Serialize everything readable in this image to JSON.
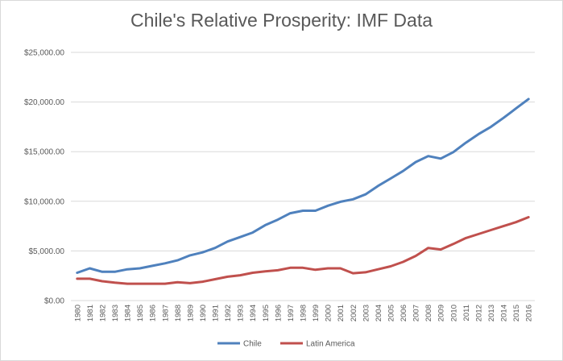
{
  "chart_data": {
    "type": "line",
    "title": "Chile's Relative Prosperity: IMF Data",
    "x": [
      "1980",
      "1981",
      "1982",
      "1983",
      "1984",
      "1985",
      "1986",
      "1987",
      "1988",
      "1989",
      "1990",
      "1991",
      "1992",
      "1993",
      "1994",
      "1995",
      "1996",
      "1997",
      "1998",
      "1999",
      "2000",
      "2001",
      "2002",
      "2003",
      "2004",
      "2005",
      "2006",
      "2007",
      "2008",
      "2009",
      "2010",
      "2011",
      "2012",
      "2013",
      "2014",
      "2015",
      "2016"
    ],
    "series": [
      {
        "name": "Chile",
        "color": "#4f81bd",
        "values": [
          2800,
          3250,
          2900,
          2900,
          3150,
          3250,
          3500,
          3750,
          4050,
          4550,
          4850,
          5300,
          5950,
          6400,
          6850,
          7600,
          8150,
          8800,
          9050,
          9050,
          9550,
          9950,
          10200,
          10700,
          11550,
          12300,
          13050,
          13950,
          14550,
          14300,
          14950,
          15900,
          16750,
          17500,
          18400,
          19350,
          20300
        ]
      },
      {
        "name": "Latin America",
        "color": "#c0504d",
        "values": [
          2200,
          2200,
          1950,
          1800,
          1700,
          1700,
          1700,
          1700,
          1850,
          1750,
          1900,
          2150,
          2400,
          2550,
          2800,
          2950,
          3050,
          3300,
          3300,
          3100,
          3250,
          3250,
          2750,
          2850,
          3150,
          3450,
          3900,
          4500,
          5300,
          5150,
          5700,
          6300,
          6700,
          7100,
          7500,
          7900,
          8400
        ]
      }
    ],
    "y_ticks": [
      "$0.00",
      "$5,000.00",
      "$10,000.00",
      "$15,000.00",
      "$20,000.00",
      "$25,000.00"
    ],
    "ylim": [
      0,
      25000
    ],
    "grid": true,
    "legend": "bottom-center",
    "xlabel": "",
    "ylabel": ""
  }
}
